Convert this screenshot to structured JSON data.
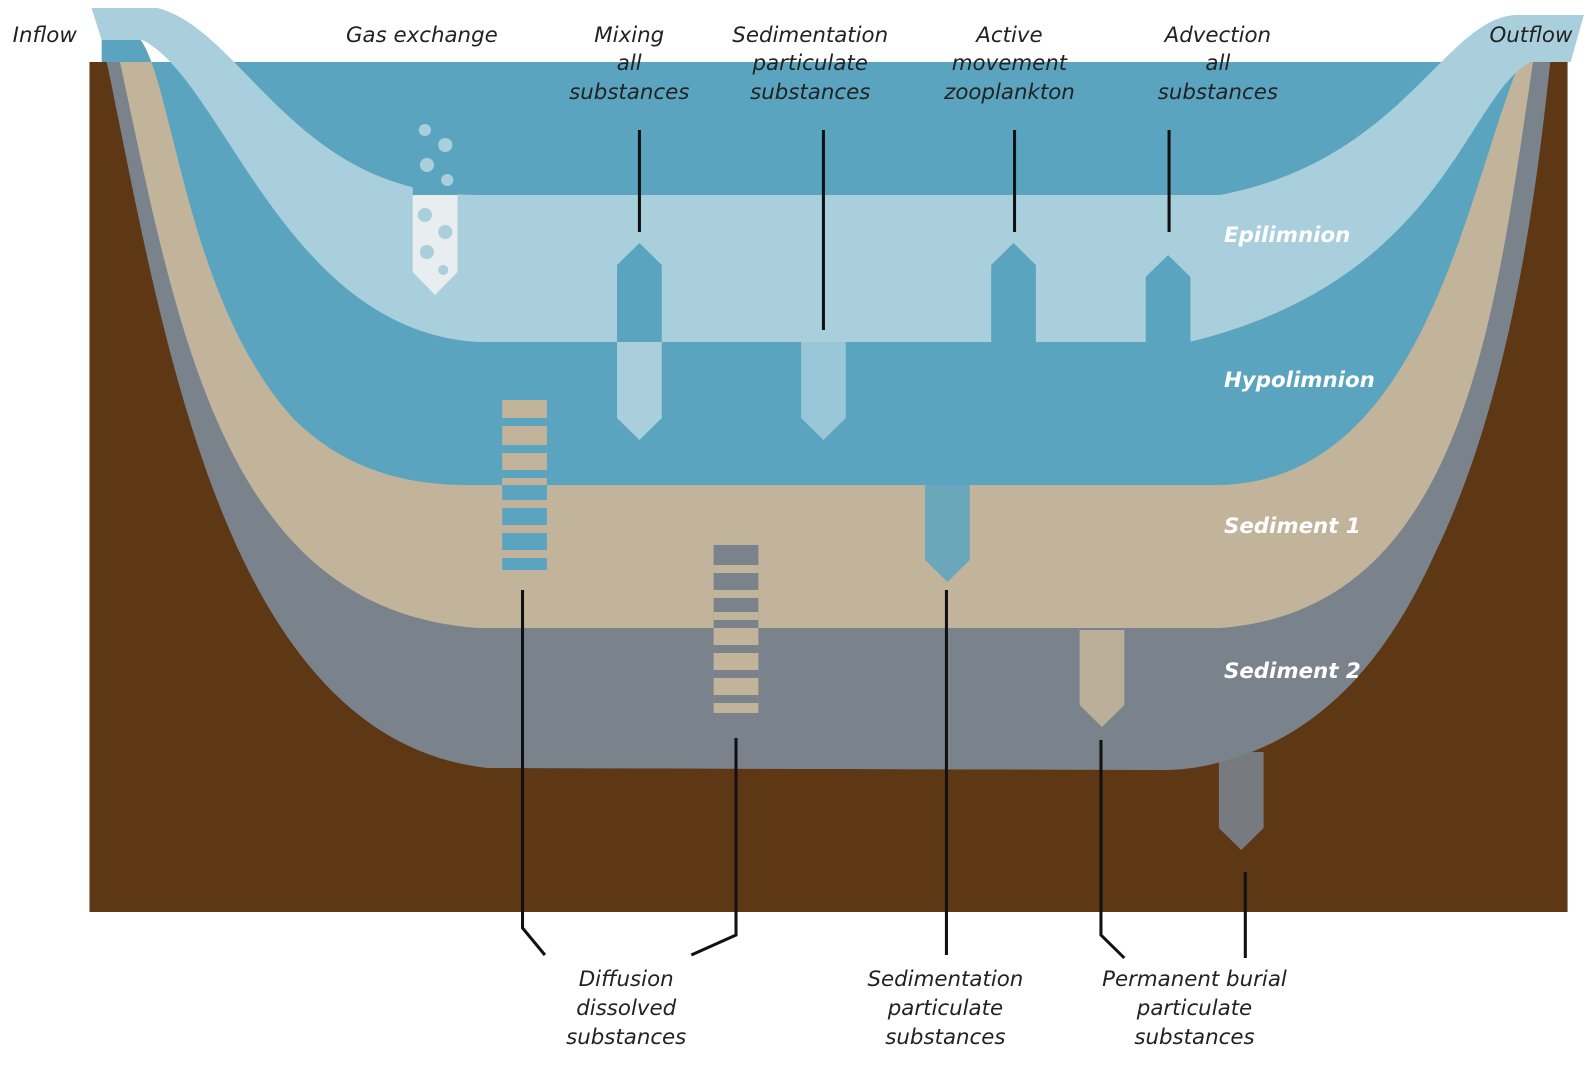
{
  "labels": {
    "inflow": "Inflow",
    "outflow": "Outflow",
    "top": [
      {
        "lines": [
          "Gas exchange"
        ]
      },
      {
        "lines": [
          "Mixing",
          "all",
          "substances"
        ]
      },
      {
        "lines": [
          "Sedimentation",
          "particulate",
          "substances"
        ]
      },
      {
        "lines": [
          "Active",
          "movement",
          "zooplankton"
        ]
      },
      {
        "lines": [
          "Advection",
          "all",
          "substances"
        ]
      }
    ],
    "bottom": [
      {
        "lines": [
          "Diffusion",
          "dissolved",
          "substances"
        ]
      },
      {
        "lines": [
          "Sedimentation",
          "particulate",
          "substances"
        ]
      },
      {
        "lines": [
          "Permanent burial",
          "particulate",
          "substances"
        ]
      }
    ]
  },
  "layers": [
    "Epilimnion",
    "Hypolimnion",
    "Sediment 1",
    "Sediment 2"
  ]
}
